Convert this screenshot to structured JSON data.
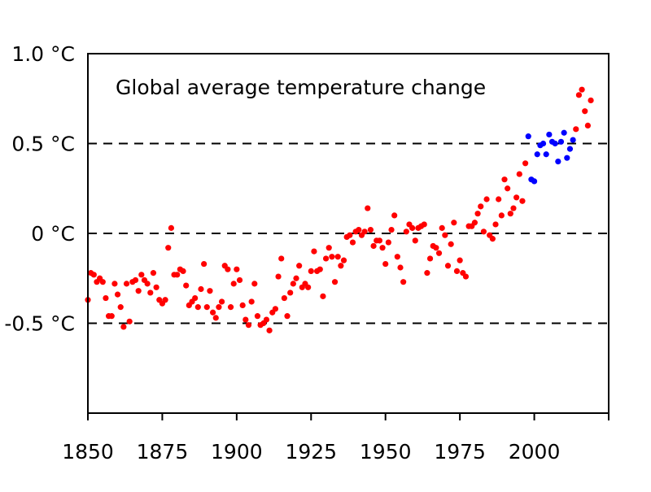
{
  "chart_data": {
    "type": "scatter",
    "title": "Global average temperature change",
    "xlabel": "",
    "ylabel": "",
    "xlim": [
      1850,
      2025
    ],
    "ylim": [
      -1.0,
      1.0
    ],
    "grid": "dashed horizontal lines at 0.5, 0 and -0.5",
    "x_ticks": [
      1850,
      1875,
      1900,
      1925,
      1950,
      1975,
      2000
    ],
    "x_tick_labels": [
      "1850",
      "1875",
      "1900",
      "1925",
      "1950",
      "1975",
      "2000"
    ],
    "y_ticks": [
      1.0,
      0.5,
      0,
      -0.5
    ],
    "y_tick_labels": [
      "1.0 °C",
      "0.5 °C",
      "0 °C",
      "-0.5 °C"
    ],
    "series": [
      {
        "color": "#ff0000",
        "x": [
          1850,
          1851,
          1852,
          1853,
          1854,
          1855,
          1856,
          1857,
          1858,
          1859,
          1860,
          1861,
          1862,
          1863,
          1864,
          1865,
          1866,
          1867,
          1868,
          1869,
          1870,
          1871,
          1872,
          1873,
          1874,
          1875,
          1876,
          1877,
          1878,
          1879,
          1880,
          1881,
          1882,
          1883,
          1884,
          1885,
          1886,
          1887,
          1888,
          1889,
          1890,
          1891,
          1892,
          1893,
          1894,
          1895,
          1896,
          1897,
          1898,
          1899,
          1900,
          1901,
          1902,
          1903,
          1904,
          1905,
          1906,
          1907,
          1908,
          1909,
          1910,
          1911,
          1912,
          1913,
          1914,
          1915,
          1916,
          1917,
          1918,
          1919,
          1920,
          1921,
          1922,
          1923,
          1924,
          1925,
          1926,
          1927,
          1928,
          1929,
          1930,
          1931,
          1932,
          1933,
          1934,
          1935,
          1936,
          1937,
          1938,
          1939,
          1940,
          1941,
          1942,
          1943,
          1944,
          1945,
          1946,
          1947,
          1948,
          1949,
          1950,
          1951,
          1952,
          1953,
          1954,
          1955,
          1956,
          1957,
          1958,
          1959,
          1960,
          1961,
          1962,
          1963,
          1964,
          1965,
          1966,
          1967,
          1968,
          1969,
          1970,
          1971,
          1972,
          1973,
          1974,
          1975,
          1976,
          1977,
          1978,
          1979,
          1980,
          1981,
          1982,
          1983,
          1984,
          1985,
          1986,
          1987,
          1988,
          1989,
          1990,
          1991,
          1992,
          1993,
          1994,
          1995,
          1996,
          1997,
          2014,
          2015,
          2016,
          2017,
          2018,
          2019
        ],
        "y": [
          -0.37,
          -0.22,
          -0.23,
          -0.27,
          -0.25,
          -0.27,
          -0.36,
          -0.46,
          -0.46,
          -0.28,
          -0.34,
          -0.41,
          -0.52,
          -0.28,
          -0.49,
          -0.27,
          -0.26,
          -0.32,
          -0.23,
          -0.26,
          -0.28,
          -0.33,
          -0.22,
          -0.3,
          -0.37,
          -0.39,
          -0.37,
          -0.08,
          0.03,
          -0.23,
          -0.23,
          -0.2,
          -0.21,
          -0.29,
          -0.4,
          -0.38,
          -0.36,
          -0.41,
          -0.31,
          -0.17,
          -0.41,
          -0.32,
          -0.44,
          -0.47,
          -0.41,
          -0.38,
          -0.18,
          -0.2,
          -0.41,
          -0.28,
          -0.2,
          -0.26,
          -0.4,
          -0.48,
          -0.51,
          -0.38,
          -0.28,
          -0.46,
          -0.51,
          -0.5,
          -0.48,
          -0.54,
          -0.44,
          -0.42,
          -0.24,
          -0.14,
          -0.36,
          -0.46,
          -0.33,
          -0.28,
          -0.25,
          -0.18,
          -0.3,
          -0.28,
          -0.3,
          -0.21,
          -0.1,
          -0.21,
          -0.2,
          -0.35,
          -0.14,
          -0.08,
          -0.13,
          -0.27,
          -0.13,
          -0.18,
          -0.15,
          -0.02,
          -0.01,
          -0.05,
          0.01,
          0.02,
          -0.01,
          0.01,
          0.14,
          0.02,
          -0.07,
          -0.04,
          -0.04,
          -0.08,
          -0.17,
          -0.05,
          0.02,
          0.1,
          -0.13,
          -0.19,
          -0.27,
          0.01,
          0.05,
          0.03,
          -0.04,
          0.03,
          0.04,
          0.05,
          -0.22,
          -0.14,
          -0.07,
          -0.08,
          -0.11,
          0.03,
          -0.01,
          -0.18,
          -0.06,
          0.06,
          -0.21,
          -0.15,
          -0.22,
          -0.24,
          0.04,
          0.04,
          0.06,
          0.11,
          0.15,
          0.01,
          0.19,
          -0.01,
          -0.03,
          0.05,
          0.19,
          0.1,
          0.3,
          0.25,
          0.11,
          0.14,
          0.2,
          0.33,
          0.18,
          0.39,
          0.58,
          0.77,
          0.8,
          0.68,
          0.6,
          0.74
        ]
      },
      {
        "color": "#0000ff",
        "x": [
          1998,
          1999,
          2000,
          2001,
          2002,
          2003,
          2004,
          2005,
          2006,
          2007,
          2008,
          2009,
          2010,
          2011,
          2012,
          2013
        ],
        "y": [
          0.54,
          0.3,
          0.29,
          0.44,
          0.49,
          0.5,
          0.44,
          0.55,
          0.51,
          0.5,
          0.4,
          0.51,
          0.56,
          0.42,
          0.47,
          0.52
        ]
      }
    ]
  }
}
